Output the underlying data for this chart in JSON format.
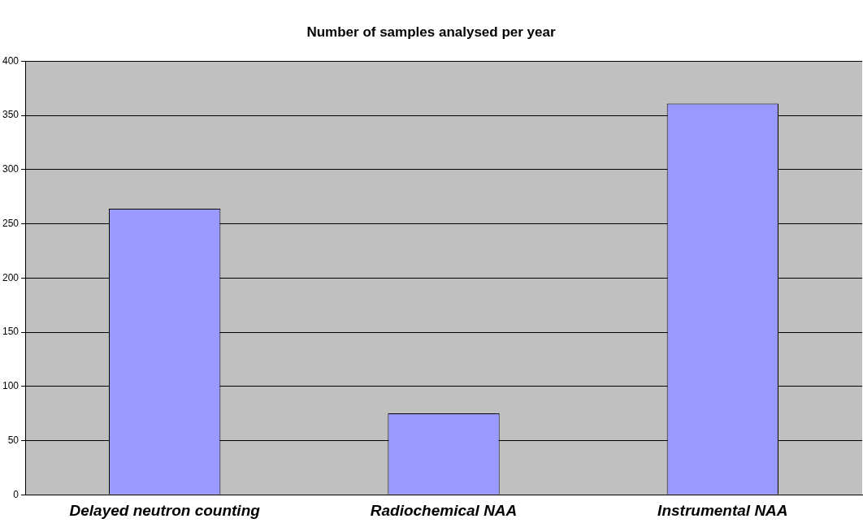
{
  "chart_data": {
    "type": "bar",
    "title": "Number of samples analysed per year",
    "categories": [
      "Delayed neutron counting",
      "Radiochemical NAA",
      "Instrumental NAA"
    ],
    "values": [
      264,
      75,
      361
    ],
    "color": "#9999ff",
    "ylim": [
      0,
      400
    ],
    "yticks": [
      0,
      50,
      100,
      150,
      200,
      250,
      300,
      350,
      400
    ],
    "grid": "y",
    "legend": false
  }
}
